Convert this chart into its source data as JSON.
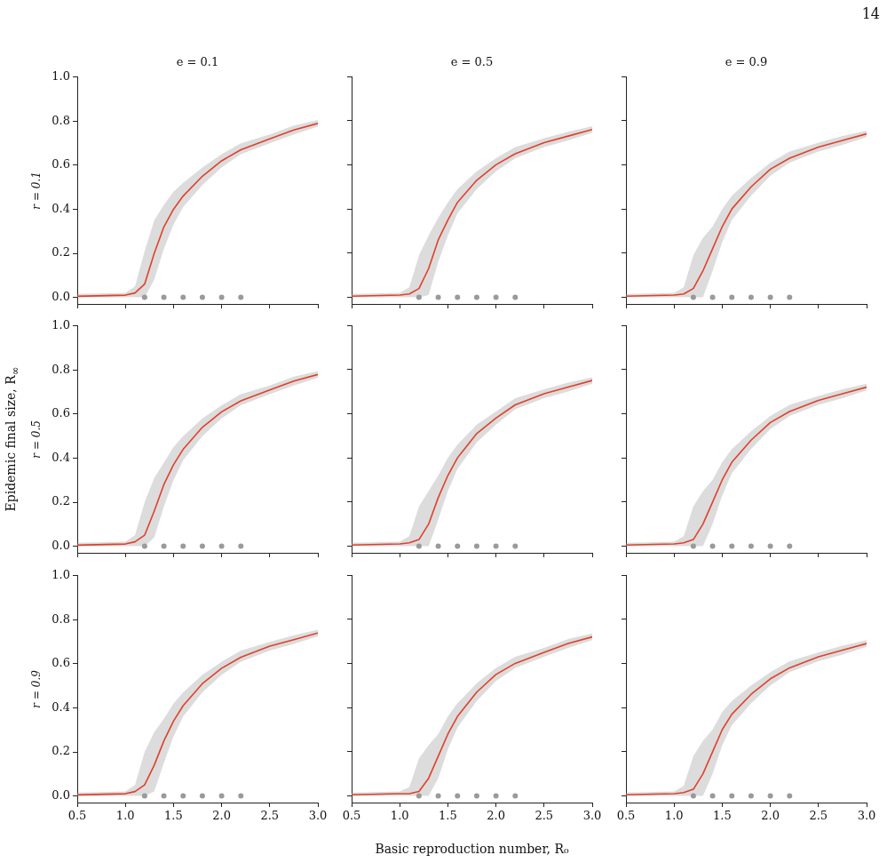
{
  "chart_data": [
    {
      "type": "line",
      "title": "e = 0.1",
      "ylabel": "r = 0.1",
      "x": [
        0.5,
        1.0,
        1.1,
        1.2,
        1.3,
        1.4,
        1.5,
        1.6,
        1.8,
        2.0,
        2.2,
        2.5,
        2.75,
        3.0
      ],
      "xlim": [
        0.5,
        3.0
      ],
      "ylim": [
        -0.03,
        1.0
      ],
      "xticks": [
        {
          "value": 0.5,
          "label": null
        },
        {
          "value": 1,
          "label": null
        },
        {
          "value": 1.5,
          "label": null
        },
        {
          "value": 2,
          "label": null
        },
        {
          "value": 2.5,
          "label": null
        },
        {
          "value": 3,
          "label": null
        }
      ],
      "yticks": [
        {
          "value": 0,
          "label": "0.0"
        },
        0.2,
        0.4,
        0.6,
        0.8,
        {
          "value": 1,
          "label": "1.0"
        }
      ],
      "tick_labels": "y",
      "grid": false,
      "legend": false,
      "series": [
        {
          "type": "line",
          "color": "#e0402a",
          "values": [
            0.005,
            0.01,
            0.02,
            0.06,
            0.2,
            0.32,
            0.4,
            0.46,
            0.55,
            0.62,
            0.67,
            0.72,
            0.76,
            0.79
          ],
          "upper": [
            0.015,
            0.02,
            0.05,
            0.21,
            0.35,
            0.42,
            0.48,
            0.52,
            0.59,
            0.65,
            0.7,
            0.74,
            0.78,
            0.805
          ],
          "lower": [
            0,
            0,
            0,
            0,
            0.08,
            0.22,
            0.33,
            0.41,
            0.51,
            0.59,
            0.65,
            0.7,
            0.74,
            0.775
          ]
        },
        {
          "type": "scatter",
          "color": "#9a9a9a",
          "x": [
            1.2,
            1.4,
            1.6,
            1.8,
            2.0,
            2.2
          ],
          "values": [
            0,
            0,
            0,
            0,
            0,
            0
          ]
        }
      ]
    },
    {
      "type": "line",
      "title": "e = 0.5",
      "x": [
        0.5,
        1.0,
        1.1,
        1.2,
        1.3,
        1.4,
        1.5,
        1.6,
        1.8,
        2.0,
        2.2,
        2.5,
        2.75,
        3.0
      ],
      "xlim": [
        0.5,
        3.0
      ],
      "ylim": [
        -0.03,
        1.0
      ],
      "xticks": [
        {
          "value": 0.5,
          "label": null
        },
        {
          "value": 1,
          "label": null
        },
        {
          "value": 1.5,
          "label": null
        },
        {
          "value": 2,
          "label": null
        },
        {
          "value": 2.5,
          "label": null
        },
        {
          "value": 3,
          "label": null
        }
      ],
      "yticks": [
        {
          "value": 0,
          "label": null
        },
        {
          "value": 0.2,
          "label": null
        },
        {
          "value": 0.4,
          "label": null
        },
        {
          "value": 0.6,
          "label": null
        },
        {
          "value": 0.8,
          "label": null
        },
        {
          "value": 1,
          "label": null
        }
      ],
      "tick_labels": false,
      "grid": false,
      "legend": false,
      "series": [
        {
          "type": "line",
          "color": "#e0402a",
          "values": [
            0.005,
            0.01,
            0.015,
            0.04,
            0.13,
            0.26,
            0.35,
            0.43,
            0.53,
            0.6,
            0.65,
            0.7,
            0.73,
            0.76
          ],
          "upper": [
            0.015,
            0.02,
            0.045,
            0.19,
            0.28,
            0.36,
            0.43,
            0.49,
            0.57,
            0.63,
            0.68,
            0.72,
            0.75,
            0.775
          ],
          "lower": [
            0,
            0,
            0,
            0,
            0.01,
            0.16,
            0.28,
            0.38,
            0.49,
            0.57,
            0.63,
            0.68,
            0.71,
            0.745
          ]
        },
        {
          "type": "scatter",
          "color": "#9a9a9a",
          "x": [
            1.2,
            1.4,
            1.6,
            1.8,
            2.0,
            2.2
          ],
          "values": [
            0,
            0,
            0,
            0,
            0,
            0
          ]
        }
      ]
    },
    {
      "type": "line",
      "title": "e = 0.9",
      "annotations": [
        "14"
      ],
      "x": [
        0.5,
        1.0,
        1.1,
        1.2,
        1.3,
        1.4,
        1.5,
        1.6,
        1.8,
        2.0,
        2.2,
        2.5,
        2.75,
        3.0
      ],
      "xlim": [
        0.5,
        3.0
      ],
      "ylim": [
        -0.03,
        1.0
      ],
      "xticks": [
        {
          "value": 0.5,
          "label": null
        },
        {
          "value": 1,
          "label": null
        },
        {
          "value": 1.5,
          "label": null
        },
        {
          "value": 2,
          "label": null
        },
        {
          "value": 2.5,
          "label": null
        },
        {
          "value": 3,
          "label": null
        }
      ],
      "yticks": [
        {
          "value": 0,
          "label": null
        },
        {
          "value": 0.2,
          "label": null
        },
        {
          "value": 0.4,
          "label": null
        },
        {
          "value": 0.6,
          "label": null
        },
        {
          "value": 0.8,
          "label": null
        },
        {
          "value": 1,
          "label": null
        }
      ],
      "tick_labels": false,
      "grid": false,
      "legend": false,
      "series": [
        {
          "type": "line",
          "color": "#e0402a",
          "values": [
            0.005,
            0.01,
            0.015,
            0.04,
            0.12,
            0.22,
            0.32,
            0.4,
            0.5,
            0.58,
            0.63,
            0.68,
            0.71,
            0.74
          ],
          "upper": [
            0.015,
            0.02,
            0.045,
            0.19,
            0.27,
            0.32,
            0.4,
            0.46,
            0.54,
            0.61,
            0.66,
            0.7,
            0.73,
            0.755
          ],
          "lower": [
            0,
            0,
            0,
            0,
            0,
            0.12,
            0.25,
            0.35,
            0.46,
            0.55,
            0.61,
            0.66,
            0.69,
            0.725
          ]
        },
        {
          "type": "scatter",
          "color": "#9a9a9a",
          "x": [
            1.2,
            1.4,
            1.6,
            1.8,
            2.0,
            2.2
          ],
          "values": [
            0,
            0,
            0,
            0,
            0,
            0
          ]
        }
      ]
    },
    {
      "type": "line",
      "ylabel": "r = 0.5",
      "annotations": [
        "Epidemic final size, R$_{∞}$"
      ],
      "x": [
        0.5,
        1.0,
        1.1,
        1.2,
        1.3,
        1.4,
        1.5,
        1.6,
        1.8,
        2.0,
        2.2,
        2.5,
        2.75,
        3.0
      ],
      "xlim": [
        0.5,
        3.0
      ],
      "ylim": [
        -0.03,
        1.0
      ],
      "xticks": [
        {
          "value": 0.5,
          "label": null
        },
        {
          "value": 1,
          "label": null
        },
        {
          "value": 1.5,
          "label": null
        },
        {
          "value": 2,
          "label": null
        },
        {
          "value": 2.5,
          "label": null
        },
        {
          "value": 3,
          "label": null
        }
      ],
      "yticks": [
        {
          "value": 0,
          "label": "0.0"
        },
        0.2,
        0.4,
        0.6,
        0.8,
        {
          "value": 1,
          "label": "1.0"
        }
      ],
      "tick_labels": "y",
      "grid": false,
      "legend": false,
      "series": [
        {
          "type": "line",
          "color": "#e0402a",
          "values": [
            0.005,
            0.01,
            0.02,
            0.05,
            0.16,
            0.28,
            0.37,
            0.44,
            0.54,
            0.61,
            0.66,
            0.71,
            0.75,
            0.78
          ],
          "upper": [
            0.015,
            0.02,
            0.05,
            0.2,
            0.31,
            0.38,
            0.45,
            0.5,
            0.58,
            0.64,
            0.69,
            0.73,
            0.77,
            0.795
          ],
          "lower": [
            0,
            0,
            0,
            0,
            0.04,
            0.18,
            0.3,
            0.39,
            0.5,
            0.58,
            0.64,
            0.69,
            0.73,
            0.765
          ]
        },
        {
          "type": "scatter",
          "color": "#9a9a9a",
          "x": [
            1.2,
            1.4,
            1.6,
            1.8,
            2.0,
            2.2
          ],
          "values": [
            0,
            0,
            0,
            0,
            0,
            0
          ]
        }
      ]
    },
    {
      "type": "line",
      "x": [
        0.5,
        1.0,
        1.1,
        1.2,
        1.3,
        1.4,
        1.5,
        1.6,
        1.8,
        2.0,
        2.2,
        2.5,
        2.75,
        3.0
      ],
      "xlim": [
        0.5,
        3.0
      ],
      "ylim": [
        -0.03,
        1.0
      ],
      "xticks": [
        {
          "value": 0.5,
          "label": null
        },
        {
          "value": 1,
          "label": null
        },
        {
          "value": 1.5,
          "label": null
        },
        {
          "value": 2,
          "label": null
        },
        {
          "value": 2.5,
          "label": null
        },
        {
          "value": 3,
          "label": null
        }
      ],
      "yticks": [
        {
          "value": 0,
          "label": null
        },
        {
          "value": 0.2,
          "label": null
        },
        {
          "value": 0.4,
          "label": null
        },
        {
          "value": 0.6,
          "label": null
        },
        {
          "value": 0.8,
          "label": null
        },
        {
          "value": 1,
          "label": null
        }
      ],
      "tick_labels": false,
      "grid": false,
      "legend": false,
      "series": [
        {
          "type": "line",
          "color": "#e0402a",
          "values": [
            0.005,
            0.01,
            0.015,
            0.03,
            0.1,
            0.22,
            0.32,
            0.4,
            0.51,
            0.58,
            0.64,
            0.69,
            0.72,
            0.75
          ],
          "upper": [
            0.015,
            0.02,
            0.045,
            0.18,
            0.25,
            0.32,
            0.4,
            0.46,
            0.55,
            0.61,
            0.67,
            0.71,
            0.74,
            0.765
          ],
          "lower": [
            0,
            0,
            0,
            0,
            0,
            0.12,
            0.25,
            0.35,
            0.47,
            0.55,
            0.62,
            0.67,
            0.7,
            0.735
          ]
        },
        {
          "type": "scatter",
          "color": "#9a9a9a",
          "x": [
            1.2,
            1.4,
            1.6,
            1.8,
            2.0,
            2.2
          ],
          "values": [
            0,
            0,
            0,
            0,
            0,
            0
          ]
        }
      ]
    },
    {
      "type": "line",
      "x": [
        0.5,
        1.0,
        1.1,
        1.2,
        1.3,
        1.4,
        1.5,
        1.6,
        1.8,
        2.0,
        2.2,
        2.5,
        2.75,
        3.0
      ],
      "xlim": [
        0.5,
        3.0
      ],
      "ylim": [
        -0.03,
        1.0
      ],
      "xticks": [
        {
          "value": 0.5,
          "label": null
        },
        {
          "value": 1,
          "label": null
        },
        {
          "value": 1.5,
          "label": null
        },
        {
          "value": 2,
          "label": null
        },
        {
          "value": 2.5,
          "label": null
        },
        {
          "value": 3,
          "label": null
        }
      ],
      "yticks": [
        {
          "value": 0,
          "label": null
        },
        {
          "value": 0.2,
          "label": null
        },
        {
          "value": 0.4,
          "label": null
        },
        {
          "value": 0.6,
          "label": null
        },
        {
          "value": 0.8,
          "label": null
        },
        {
          "value": 1,
          "label": null
        }
      ],
      "tick_labels": false,
      "grid": false,
      "legend": false,
      "series": [
        {
          "type": "line",
          "color": "#e0402a",
          "values": [
            0.005,
            0.01,
            0.015,
            0.03,
            0.1,
            0.2,
            0.3,
            0.38,
            0.48,
            0.56,
            0.61,
            0.66,
            0.69,
            0.72
          ],
          "upper": [
            0.015,
            0.02,
            0.045,
            0.18,
            0.25,
            0.3,
            0.38,
            0.44,
            0.52,
            0.59,
            0.64,
            0.68,
            0.71,
            0.735
          ],
          "lower": [
            0,
            0,
            0,
            0,
            0,
            0.1,
            0.23,
            0.33,
            0.44,
            0.53,
            0.59,
            0.64,
            0.67,
            0.705
          ]
        },
        {
          "type": "scatter",
          "color": "#9a9a9a",
          "x": [
            1.2,
            1.4,
            1.6,
            1.8,
            2.0,
            2.2
          ],
          "values": [
            0,
            0,
            0,
            0,
            0,
            0
          ]
        }
      ]
    },
    {
      "type": "line",
      "ylabel": "r = 0.9",
      "x": [
        0.5,
        1.0,
        1.1,
        1.2,
        1.3,
        1.4,
        1.5,
        1.6,
        1.8,
        2.0,
        2.2,
        2.5,
        2.75,
        3.0
      ],
      "xlim": [
        0.5,
        3.0
      ],
      "ylim": [
        -0.03,
        1.0
      ],
      "xticks": [
        0.5,
        {
          "value": 1,
          "label": "1.0"
        },
        1.5,
        {
          "value": 2,
          "label": "2.0"
        },
        2.5,
        {
          "value": 3,
          "label": "3.0"
        }
      ],
      "yticks": [
        {
          "value": 0,
          "label": "0.0"
        },
        0.2,
        0.4,
        0.6,
        0.8,
        {
          "value": 1,
          "label": "1.0"
        }
      ],
      "grid": false,
      "legend": false,
      "series": [
        {
          "type": "line",
          "color": "#e0402a",
          "values": [
            0.005,
            0.01,
            0.02,
            0.05,
            0.14,
            0.25,
            0.34,
            0.41,
            0.51,
            0.58,
            0.63,
            0.68,
            0.71,
            0.74
          ],
          "upper": [
            0.015,
            0.02,
            0.05,
            0.2,
            0.29,
            0.35,
            0.42,
            0.47,
            0.55,
            0.61,
            0.66,
            0.7,
            0.73,
            0.755
          ],
          "lower": [
            0,
            0,
            0,
            0,
            0.02,
            0.15,
            0.27,
            0.36,
            0.47,
            0.55,
            0.61,
            0.66,
            0.69,
            0.725
          ]
        },
        {
          "type": "scatter",
          "color": "#9a9a9a",
          "x": [
            1.2,
            1.4,
            1.6,
            1.8,
            2.0,
            2.2
          ],
          "values": [
            0,
            0,
            0,
            0,
            0,
            0
          ]
        }
      ]
    },
    {
      "type": "line",
      "annotations": [
        "Basic reproduction number, R₀"
      ],
      "x": [
        0.5,
        1.0,
        1.1,
        1.2,
        1.3,
        1.4,
        1.5,
        1.6,
        1.8,
        2.0,
        2.2,
        2.5,
        2.75,
        3.0
      ],
      "xlim": [
        0.5,
        3.0
      ],
      "ylim": [
        -0.03,
        1.0
      ],
      "xticks": [
        0.5,
        {
          "value": 1,
          "label": "1.0"
        },
        1.5,
        {
          "value": 2,
          "label": "2.0"
        },
        2.5,
        {
          "value": 3,
          "label": "3.0"
        }
      ],
      "yticks": [
        {
          "value": 0,
          "label": null
        },
        {
          "value": 0.2,
          "label": null
        },
        {
          "value": 0.4,
          "label": null
        },
        {
          "value": 0.6,
          "label": null
        },
        {
          "value": 0.8,
          "label": null
        },
        {
          "value": 1,
          "label": null
        }
      ],
      "tick_labels": "x",
      "grid": false,
      "legend": false,
      "series": [
        {
          "type": "line",
          "color": "#e0402a",
          "values": [
            0.005,
            0.01,
            0.01,
            0.02,
            0.08,
            0.18,
            0.28,
            0.36,
            0.47,
            0.55,
            0.6,
            0.65,
            0.69,
            0.72
          ],
          "upper": [
            0.015,
            0.02,
            0.04,
            0.17,
            0.23,
            0.28,
            0.36,
            0.42,
            0.51,
            0.58,
            0.63,
            0.67,
            0.71,
            0.735
          ],
          "lower": [
            0,
            0,
            0,
            0,
            0,
            0.08,
            0.21,
            0.31,
            0.43,
            0.52,
            0.58,
            0.63,
            0.67,
            0.705
          ]
        },
        {
          "type": "scatter",
          "color": "#9a9a9a",
          "x": [
            1.2,
            1.4,
            1.6,
            1.8,
            2.0,
            2.2
          ],
          "values": [
            0,
            0,
            0,
            0,
            0,
            0
          ]
        }
      ]
    },
    {
      "type": "line",
      "x": [
        0.5,
        1.0,
        1.1,
        1.2,
        1.3,
        1.4,
        1.5,
        1.6,
        1.8,
        2.0,
        2.2,
        2.5,
        2.75,
        3.0
      ],
      "xlim": [
        0.5,
        3.0
      ],
      "ylim": [
        -0.03,
        1.0
      ],
      "xticks": [
        0.5,
        {
          "value": 1,
          "label": "1.0"
        },
        1.5,
        {
          "value": 2,
          "label": "2.0"
        },
        2.5,
        {
          "value": 3,
          "label": "3.0"
        }
      ],
      "yticks": [
        {
          "value": 0,
          "label": null
        },
        {
          "value": 0.2,
          "label": null
        },
        {
          "value": 0.4,
          "label": null
        },
        {
          "value": 0.6,
          "label": null
        },
        {
          "value": 0.8,
          "label": null
        },
        {
          "value": 1,
          "label": null
        }
      ],
      "tick_labels": "x",
      "grid": false,
      "legend": false,
      "series": [
        {
          "type": "line",
          "color": "#e0402a",
          "values": [
            0.005,
            0.01,
            0.015,
            0.03,
            0.1,
            0.2,
            0.3,
            0.37,
            0.46,
            0.53,
            0.58,
            0.63,
            0.66,
            0.69
          ],
          "upper": [
            0.015,
            0.02,
            0.045,
            0.18,
            0.25,
            0.3,
            0.38,
            0.43,
            0.5,
            0.56,
            0.61,
            0.65,
            0.68,
            0.705
          ],
          "lower": [
            0,
            0,
            0,
            0,
            0,
            0.1,
            0.23,
            0.32,
            0.42,
            0.5,
            0.56,
            0.61,
            0.64,
            0.675
          ]
        },
        {
          "type": "scatter",
          "color": "#9a9a9a",
          "x": [
            1.2,
            1.4,
            1.6,
            1.8,
            2.0,
            2.2
          ],
          "values": [
            0,
            0,
            0,
            0,
            0,
            0
          ]
        }
      ]
    }
  ]
}
